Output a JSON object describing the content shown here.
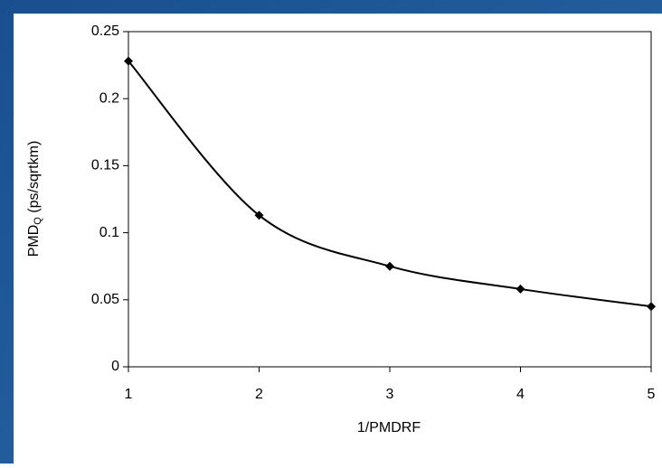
{
  "chart_data": {
    "type": "line",
    "ylabel_parts": [
      "PMD",
      "Q",
      " (ps/sqrtkm)"
    ],
    "xlabel": "1/PMDRF",
    "x": [
      1,
      2,
      3,
      4,
      5
    ],
    "series": [
      {
        "color": "#000000",
        "values": [
          0.228,
          0.113,
          0.075,
          0.058,
          0.045
        ]
      }
    ],
    "xlim": [
      1,
      5
    ],
    "xticks": [
      1,
      2,
      3,
      4,
      5
    ],
    "ylim": [
      0,
      0.25
    ],
    "yticks": [
      0,
      0.05,
      0.1,
      0.15,
      0.2,
      0.25
    ],
    "grid": false,
    "smooth": true
  }
}
